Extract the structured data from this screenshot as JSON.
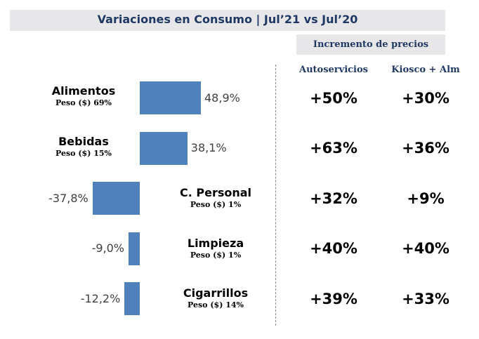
{
  "title": "Variaciones en Consumo  |  Jul’21 vs Jul’20",
  "subtitle": "Incremento de precios",
  "columns": {
    "autoservicios": "Autoservicios",
    "kiosco": "Kiosco + Alm"
  },
  "chart_data": {
    "type": "bar",
    "orientation": "horizontal",
    "categories": [
      "Alimentos",
      "Bebidas",
      "C. Personal",
      "Limpieza",
      "Cigarrillos"
    ],
    "weights": [
      "Peso ($) 69%",
      "Peso ($) 15%",
      "Peso ($) 1%",
      "Peso ($) 1%",
      "Peso ($) 14%"
    ],
    "values": [
      48.9,
      38.1,
      -37.8,
      -9.0,
      -12.2
    ],
    "value_labels": [
      "48,9%",
      "38,1%",
      "-37,8%",
      "-9,0%",
      "-12,2%"
    ],
    "unit": "%",
    "axis_range": [
      -50,
      50
    ]
  },
  "table": {
    "autoservicios": [
      "+50%",
      "+63%",
      "+32%",
      "+40%",
      "+39%"
    ],
    "kiosco": [
      "+30%",
      "+36%",
      "+9%",
      "+40%",
      "+33%"
    ]
  },
  "colors": {
    "bar": "#4f81bd",
    "title_text": "#1f3864",
    "header_bg": "#e7e7e9"
  }
}
